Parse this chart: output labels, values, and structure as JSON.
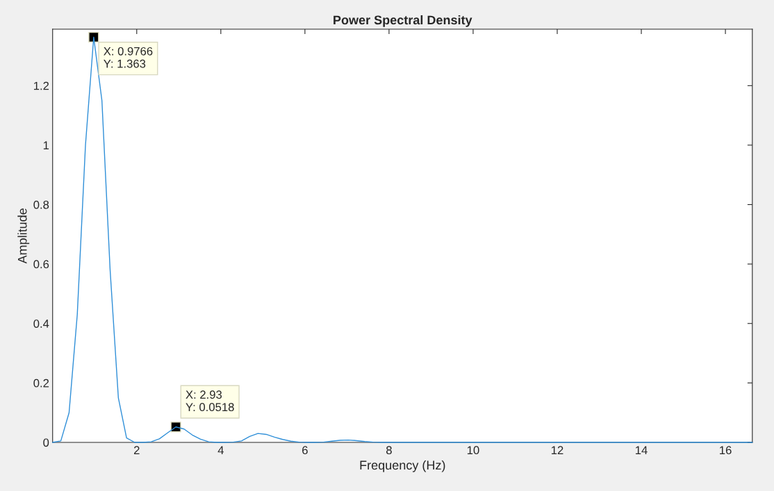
{
  "chart_data": {
    "type": "line",
    "title": "Power Spectral Density",
    "xlabel": "Frequency (Hz)",
    "ylabel": "Amplitude",
    "x": [
      0,
      0.195,
      0.391,
      0.586,
      0.781,
      0.977,
      1.172,
      1.367,
      1.563,
      1.758,
      1.953,
      2.148,
      2.344,
      2.539,
      2.734,
      2.93,
      3.125,
      3.32,
      3.516,
      3.711,
      3.906,
      4.102,
      4.297,
      4.492,
      4.688,
      4.883,
      5.078,
      5.273,
      5.469,
      5.664,
      5.859,
      6.055,
      6.25,
      6.445,
      6.641,
      6.836,
      7.031,
      7.227,
      7.422,
      7.617,
      7.813,
      10,
      12,
      14,
      16,
      16.64
    ],
    "series": [
      {
        "color": "#2f8fd8",
        "values": [
          0.0,
          0.005,
          0.1,
          0.43,
          1.0,
          1.363,
          1.15,
          0.58,
          0.15,
          0.015,
          0.0,
          0.0,
          0.002,
          0.012,
          0.032,
          0.052,
          0.045,
          0.025,
          0.011,
          0.002,
          0.0,
          0.0,
          0.001,
          0.005,
          0.02,
          0.03,
          0.027,
          0.018,
          0.01,
          0.004,
          0.001,
          0.0,
          0.0,
          0.001,
          0.004,
          0.007,
          0.008,
          0.006,
          0.003,
          0.001,
          0.0,
          0.0,
          0.0,
          0.0,
          0.0,
          0.0
        ]
      }
    ],
    "xlim": [
      0,
      16.64
    ],
    "ylim": [
      0,
      1.39
    ],
    "xticks": [
      2,
      4,
      6,
      8,
      10,
      12,
      14,
      16
    ],
    "yticks": [
      0,
      0.2,
      0.4,
      0.6,
      0.8,
      1,
      1.2
    ],
    "annotations": [
      {
        "text": "X: 0.9766\nY: 1.363",
        "x": 0.9766,
        "y": 1.363
      },
      {
        "text": "X: 2.93\nY: 0.0518",
        "x": 2.93,
        "y": 0.0518
      }
    ],
    "grid": false,
    "legend": false,
    "marker": "none",
    "line_style": "solid"
  }
}
